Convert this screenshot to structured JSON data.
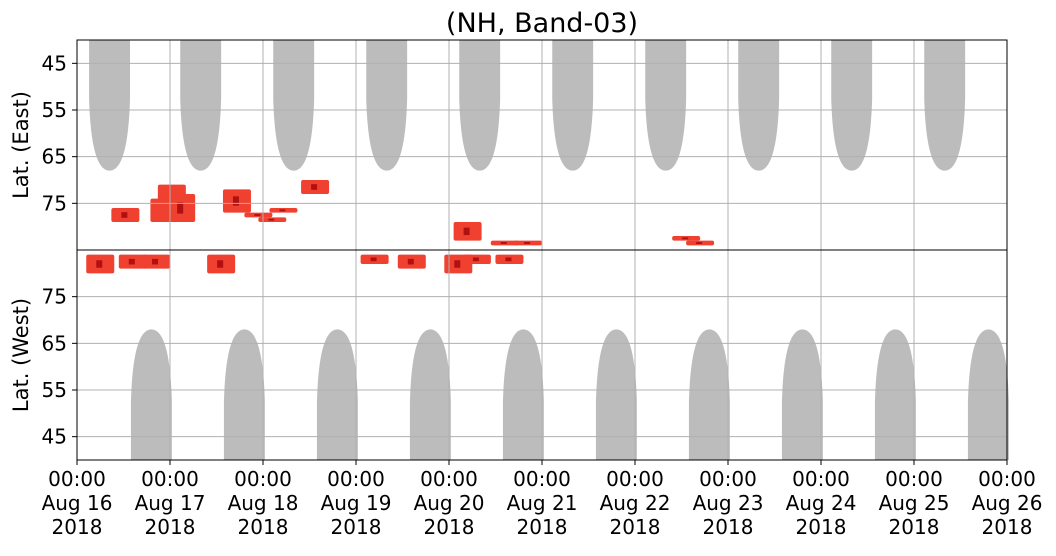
{
  "chart_data": {
    "type": "heatmap",
    "title": "(NH, Band-03)",
    "ylabel_top": "Lat. (East)",
    "ylabel_bottom": "Lat. (West)",
    "grid": true,
    "x_ticks": [
      {
        "time": "00:00",
        "date": "Aug 16",
        "year": "2018"
      },
      {
        "time": "00:00",
        "date": "Aug 17",
        "year": "2018"
      },
      {
        "time": "00:00",
        "date": "Aug 18",
        "year": "2018"
      },
      {
        "time": "00:00",
        "date": "Aug 19",
        "year": "2018"
      },
      {
        "time": "00:00",
        "date": "Aug 20",
        "year": "2018"
      },
      {
        "time": "00:00",
        "date": "Aug 21",
        "year": "2018"
      },
      {
        "time": "00:00",
        "date": "Aug 22",
        "year": "2018"
      },
      {
        "time": "00:00",
        "date": "Aug 23",
        "year": "2018"
      },
      {
        "time": "00:00",
        "date": "Aug 24",
        "year": "2018"
      },
      {
        "time": "00:00",
        "date": "Aug 25",
        "year": "2018"
      },
      {
        "time": "00:00",
        "date": "Aug 26",
        "year": "2018"
      }
    ],
    "x_range": [
      "2018-08-16 00:00",
      "2018-08-26 00:00"
    ],
    "top_panel": {
      "ylim": [
        40,
        85
      ],
      "y_ticks": [
        45,
        55,
        65,
        75
      ],
      "grey_coverage_lobes": [
        {
          "center_day": 0.35,
          "half_width_days": 0.22,
          "min_lat": 68
        },
        {
          "center_day": 1.33,
          "half_width_days": 0.22,
          "min_lat": 68
        },
        {
          "center_day": 2.33,
          "half_width_days": 0.22,
          "min_lat": 68
        },
        {
          "center_day": 3.33,
          "half_width_days": 0.22,
          "min_lat": 68
        },
        {
          "center_day": 4.33,
          "half_width_days": 0.22,
          "min_lat": 68
        },
        {
          "center_day": 5.33,
          "half_width_days": 0.22,
          "min_lat": 68
        },
        {
          "center_day": 6.33,
          "half_width_days": 0.22,
          "min_lat": 68
        },
        {
          "center_day": 7.33,
          "half_width_days": 0.22,
          "min_lat": 68
        },
        {
          "center_day": 8.33,
          "half_width_days": 0.22,
          "min_lat": 68
        },
        {
          "center_day": 9.33,
          "half_width_days": 0.22,
          "min_lat": 68
        }
      ],
      "red_events": [
        {
          "day": 0.52,
          "lat0": 76,
          "lat1": 79
        },
        {
          "day": 0.94,
          "lat0": 74,
          "lat1": 79
        },
        {
          "day": 1.02,
          "lat0": 71,
          "lat1": 78
        },
        {
          "day": 1.12,
          "lat0": 73,
          "lat1": 79
        },
        {
          "day": 1.72,
          "lat0": 72,
          "lat1": 77
        },
        {
          "day": 1.95,
          "lat0": 77,
          "lat1": 78
        },
        {
          "day": 2.1,
          "lat0": 78,
          "lat1": 79
        },
        {
          "day": 2.22,
          "lat0": 76,
          "lat1": 77
        },
        {
          "day": 2.56,
          "lat0": 70,
          "lat1": 73
        },
        {
          "day": 4.2,
          "lat0": 79,
          "lat1": 83
        },
        {
          "day": 4.6,
          "lat0": 83,
          "lat1": 84
        },
        {
          "day": 4.85,
          "lat0": 83,
          "lat1": 84
        },
        {
          "day": 6.55,
          "lat0": 82,
          "lat1": 83
        },
        {
          "day": 6.7,
          "lat0": 83,
          "lat1": 84
        }
      ]
    },
    "bottom_panel": {
      "ylim": [
        85,
        40
      ],
      "y_ticks": [
        75,
        65,
        55,
        45
      ],
      "grey_coverage_lobes": [
        {
          "center_day": 0.8,
          "half_width_days": 0.22,
          "min_lat": 68
        },
        {
          "center_day": 1.8,
          "half_width_days": 0.22,
          "min_lat": 68
        },
        {
          "center_day": 2.8,
          "half_width_days": 0.22,
          "min_lat": 68
        },
        {
          "center_day": 3.8,
          "half_width_days": 0.22,
          "min_lat": 68
        },
        {
          "center_day": 4.8,
          "half_width_days": 0.22,
          "min_lat": 68
        },
        {
          "center_day": 5.8,
          "half_width_days": 0.22,
          "min_lat": 68
        },
        {
          "center_day": 6.8,
          "half_width_days": 0.22,
          "min_lat": 68
        },
        {
          "center_day": 7.8,
          "half_width_days": 0.22,
          "min_lat": 68
        },
        {
          "center_day": 8.8,
          "half_width_days": 0.22,
          "min_lat": 68
        },
        {
          "center_day": 9.8,
          "half_width_days": 0.22,
          "min_lat": 68
        }
      ],
      "red_events": [
        {
          "day": 0.25,
          "lat0": 80,
          "lat1": 84
        },
        {
          "day": 0.6,
          "lat0": 81,
          "lat1": 84
        },
        {
          "day": 0.85,
          "lat0": 81,
          "lat1": 84
        },
        {
          "day": 1.55,
          "lat0": 80,
          "lat1": 84
        },
        {
          "day": 3.2,
          "lat0": 82,
          "lat1": 84
        },
        {
          "day": 3.6,
          "lat0": 81,
          "lat1": 84
        },
        {
          "day": 4.1,
          "lat0": 80,
          "lat1": 84
        },
        {
          "day": 4.3,
          "lat0": 82,
          "lat1": 84
        },
        {
          "day": 4.65,
          "lat0": 82,
          "lat1": 84
        }
      ]
    },
    "colors": {
      "coverage": "#b8b8b8",
      "event_red": "#f04030",
      "event_dark": "#b01010",
      "grid": "#b0b0b0"
    }
  }
}
